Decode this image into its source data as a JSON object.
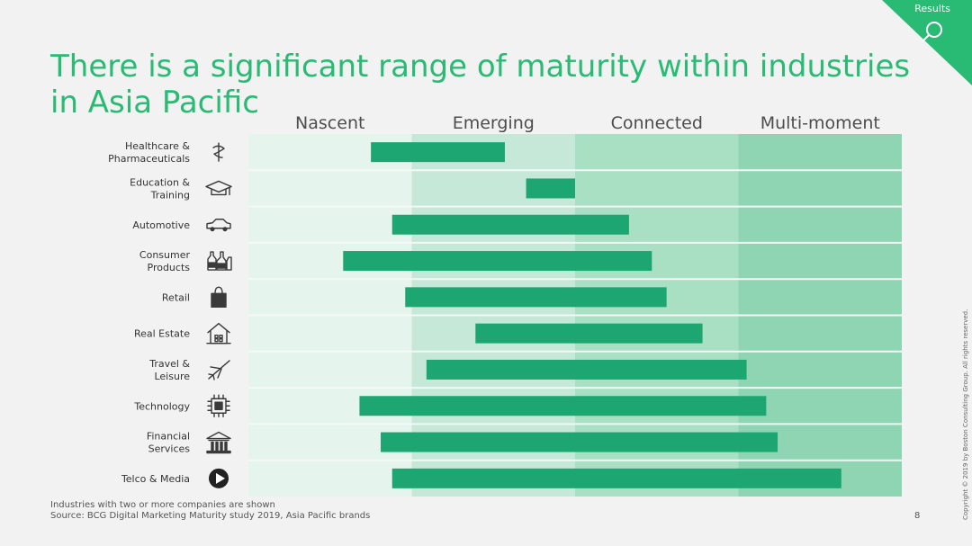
{
  "corner_tab": {
    "label": "Results",
    "icon": "magnifier-icon",
    "color": "#29ba74"
  },
  "title": {
    "line1": "There is a significant range of maturity within industries",
    "line2": "in Asia Pacific",
    "color": "#29ba74"
  },
  "chart_data": {
    "type": "bar",
    "orientation": "horizontal-range",
    "stages": [
      "Nascent",
      "Emerging",
      "Connected",
      "Multi-moment"
    ],
    "stage_colors": [
      "#e6f4ee",
      "#c6e8d8",
      "#a9dfc3",
      "#8fd5b3"
    ],
    "bar_color": "#1ea672",
    "xlim": [
      0,
      4
    ],
    "categories": [
      {
        "label_lines": [
          "Healthcare &",
          "Pharmaceuticals"
        ],
        "icon": "medical-caduceus-icon",
        "start": 0.75,
        "end": 1.57
      },
      {
        "label_lines": [
          "Education &",
          "Training"
        ],
        "icon": "graduation-cap-icon",
        "start": 1.7,
        "end": 2.0
      },
      {
        "label_lines": [
          "Automotive"
        ],
        "icon": "car-icon",
        "start": 0.88,
        "end": 2.33
      },
      {
        "label_lines": [
          "Consumer",
          "Products"
        ],
        "icon": "bottles-icon",
        "start": 0.58,
        "end": 2.47
      },
      {
        "label_lines": [
          "Retail"
        ],
        "icon": "shopping-bag-icon",
        "start": 0.96,
        "end": 2.56
      },
      {
        "label_lines": [
          "Real Estate"
        ],
        "icon": "house-icon",
        "start": 1.39,
        "end": 2.78
      },
      {
        "label_lines": [
          "Travel &",
          "Leisure"
        ],
        "icon": "airplane-icon",
        "start": 1.09,
        "end": 3.05
      },
      {
        "label_lines": [
          "Technology"
        ],
        "icon": "microchip-icon",
        "start": 0.68,
        "end": 3.17
      },
      {
        "label_lines": [
          "Financial",
          "Services"
        ],
        "icon": "bank-building-icon",
        "start": 0.81,
        "end": 3.24
      },
      {
        "label_lines": [
          "Telco & Media"
        ],
        "icon": "play-button-icon",
        "start": 0.88,
        "end": 3.63
      }
    ]
  },
  "footnote": {
    "note": "Industries with two or more companies are shown",
    "source": "Source: BCG Digital Marketing Maturity study 2019, Asia Pacific brands"
  },
  "page_number": "8",
  "copyright": "Copyright © 2019 by Boston Consulting Group. All rights reserved."
}
